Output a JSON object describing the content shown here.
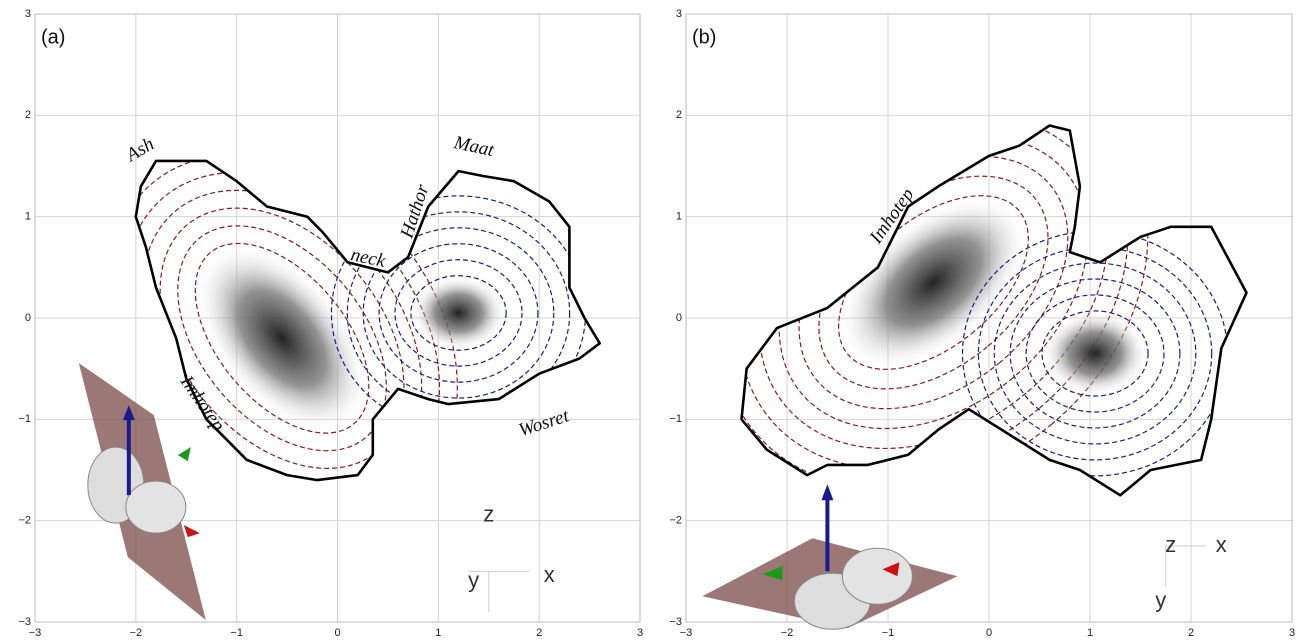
{
  "chart_data": [
    {
      "type": "contour",
      "panel_label": "(a)",
      "annotations": [
        "Ash",
        "Maat",
        "Hathor",
        "neck",
        "Imhotep",
        "Wosret"
      ],
      "axis_labels": [
        "z",
        "y",
        "x"
      ],
      "contour_colors": [
        "#8b1a1a",
        "#1c1c8c"
      ],
      "xlim": [
        -3,
        3
      ],
      "ylim": [
        -3,
        3
      ],
      "xticks": [
        {
          "value": -3,
          "label": "−3"
        },
        {
          "value": -2,
          "label": "−2"
        },
        {
          "value": -1,
          "label": "−1"
        },
        0,
        1,
        2,
        3
      ],
      "yticks": [
        {
          "value": -3,
          "label": "−3"
        },
        {
          "value": -2,
          "label": "−2"
        },
        {
          "value": -1,
          "label": "−1"
        },
        0,
        1,
        2,
        3
      ],
      "grid": true
    },
    {
      "type": "contour",
      "panel_label": "(b)",
      "annotations": [
        "Imhotep"
      ],
      "axis_labels": [
        "z",
        "x",
        "y"
      ],
      "contour_colors": [
        "#8b1a1a",
        "#1c1c8c"
      ],
      "xlim": [
        -3,
        3
      ],
      "ylim": [
        -3,
        3
      ],
      "xticks": [
        {
          "value": -3,
          "label": "−3"
        },
        {
          "value": -2,
          "label": "−2"
        },
        {
          "value": -1,
          "label": "−1"
        },
        0,
        1,
        2,
        3
      ],
      "yticks": [
        {
          "value": -3,
          "label": "−3"
        },
        {
          "value": -2,
          "label": "−2"
        },
        {
          "value": -1,
          "label": "−1"
        },
        0,
        1,
        2,
        3
      ],
      "grid": true
    }
  ]
}
